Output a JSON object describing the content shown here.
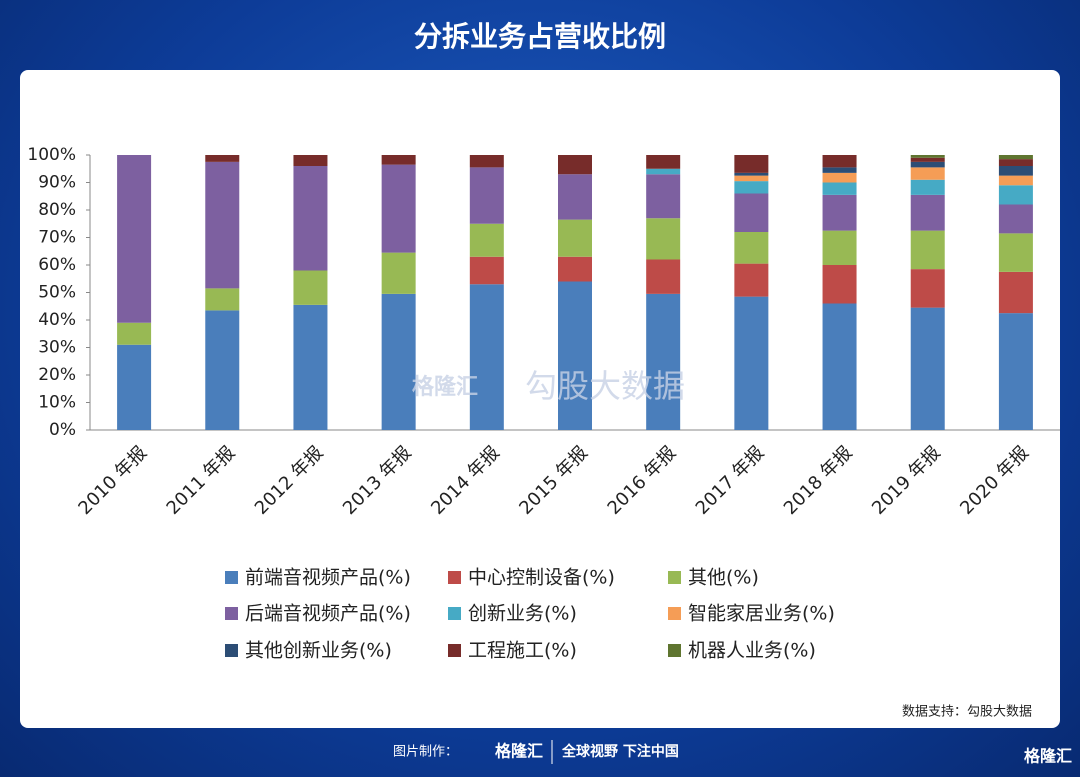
{
  "header": {
    "title": "分拆业务占营收比例"
  },
  "chart_data": {
    "type": "stacked_bar",
    "categories": [
      "2010 年报",
      "2011 年报",
      "2012 年报",
      "2013 年报",
      "2014 年报",
      "2015 年报",
      "2016 年报",
      "2017 年报",
      "2018 年报",
      "2019 年报",
      "2020 年报"
    ],
    "series": [
      {
        "name": "前端音视频产品(%)",
        "color": "#4a7ebb",
        "values": [
          31,
          43.5,
          45.5,
          49.5,
          53,
          54,
          49.5,
          48.5,
          46,
          44.5,
          42.5
        ]
      },
      {
        "name": "中心控制设备(%)",
        "color": "#be4b48",
        "values": [
          0,
          0,
          0,
          0,
          10,
          9,
          12.5,
          12,
          14,
          14,
          15
        ]
      },
      {
        "name": "其他(%)",
        "color": "#98b954",
        "values": [
          8,
          8,
          12.5,
          15,
          12,
          13.5,
          15,
          11.5,
          12.5,
          14,
          14
        ]
      },
      {
        "name": "后端音视频产品(%)",
        "color": "#7d60a0",
        "values": [
          61,
          46,
          38,
          32,
          20.5,
          16.5,
          16,
          14,
          13,
          13,
          10.5
        ]
      },
      {
        "name": "创新业务(%)",
        "color": "#46aac5",
        "values": [
          0,
          0,
          0,
          0,
          0,
          0,
          2,
          4.5,
          4.5,
          5.5,
          7
        ]
      },
      {
        "name": "智能家居业务(%)",
        "color": "#f59d56",
        "values": [
          0,
          0,
          0,
          0,
          0,
          0,
          0,
          2,
          3.5,
          4.5,
          3.5
        ]
      },
      {
        "name": "其他创新业务(%)",
        "color": "#2c4d75",
        "values": [
          0,
          0,
          0,
          0,
          0,
          0,
          0,
          1,
          2,
          2,
          3.5
        ]
      },
      {
        "name": "工程施工(%)",
        "color": "#772c2a",
        "values": [
          0,
          2.5,
          4,
          3.5,
          4.5,
          7,
          5,
          6.5,
          4.5,
          1.5,
          2.5
        ]
      },
      {
        "name": "机器人业务(%)",
        "color": "#5f7530",
        "values": [
          0,
          0,
          0,
          0,
          0,
          0,
          0,
          0,
          0,
          1,
          1.5
        ]
      }
    ],
    "ylim": [
      0,
      100
    ],
    "yticks": [
      {
        "value": 0,
        "label": "0%"
      },
      {
        "value": 10,
        "label": "10%"
      },
      {
        "value": 20,
        "label": "20%"
      },
      {
        "value": 30,
        "label": "30%"
      },
      {
        "value": 40,
        "label": "40%"
      },
      {
        "value": 50,
        "label": "50%"
      },
      {
        "value": 60,
        "label": "60%"
      },
      {
        "value": 70,
        "label": "70%"
      },
      {
        "value": 80,
        "label": "80%"
      },
      {
        "value": 90,
        "label": "90%"
      },
      {
        "value": 100,
        "label": "100%"
      }
    ]
  },
  "watermark": {
    "brand": "格隆汇",
    "text": "勾股大数据"
  },
  "source": "数据支持：勾股大数据",
  "footer": {
    "made_by": "图片制作：",
    "brand": "格隆汇",
    "slogan": "全球视野 下注中国",
    "corner": "格隆汇"
  }
}
